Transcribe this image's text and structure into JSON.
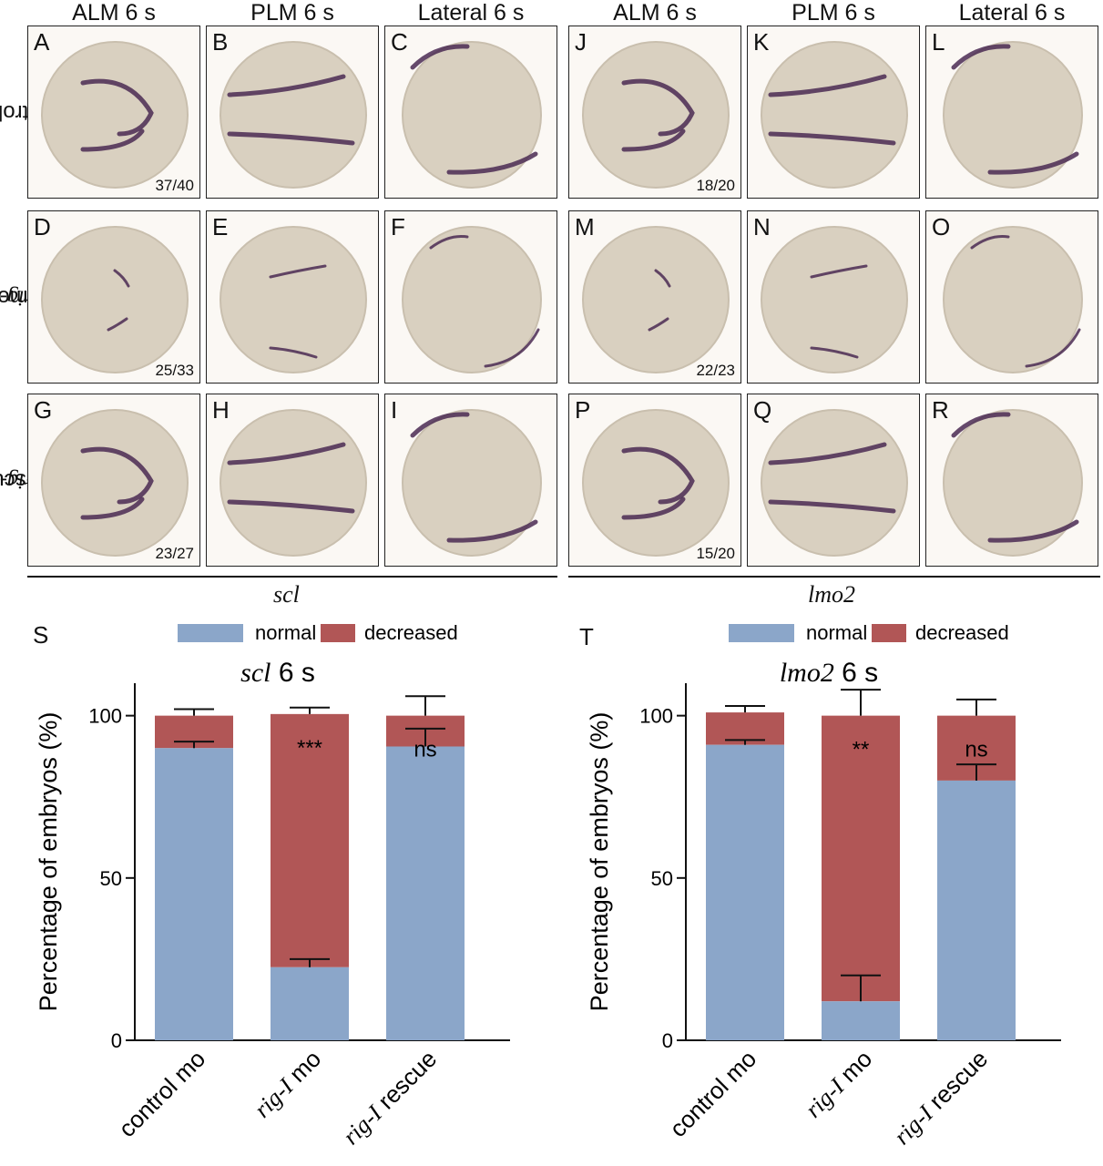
{
  "column_headers": [
    "ALM 6 s",
    "PLM 6 s",
    "Lateral 6 s",
    "ALM 6 s",
    "PLM 6 s",
    "Lateral 6 s"
  ],
  "row_labels": [
    {
      "italic": "",
      "plain": "control mo"
    },
    {
      "italic": "rig-I",
      "plain": " mo"
    },
    {
      "italic": "rig-I",
      "plain": " rescue"
    }
  ],
  "panels": [
    {
      "letter": "A",
      "count": "37/40",
      "view": "alm",
      "strength": "strong"
    },
    {
      "letter": "B",
      "count": "",
      "view": "plm",
      "strength": "strong"
    },
    {
      "letter": "C",
      "count": "",
      "view": "lateral",
      "strength": "strong"
    },
    {
      "letter": "J",
      "count": "18/20",
      "view": "alm",
      "strength": "strong"
    },
    {
      "letter": "K",
      "count": "",
      "view": "plm",
      "strength": "strong"
    },
    {
      "letter": "L",
      "count": "",
      "view": "lateral",
      "strength": "strong"
    },
    {
      "letter": "D",
      "count": "25/33",
      "view": "alm",
      "strength": "weak"
    },
    {
      "letter": "E",
      "count": "",
      "view": "plm",
      "strength": "weak"
    },
    {
      "letter": "F",
      "count": "",
      "view": "lateral",
      "strength": "weak"
    },
    {
      "letter": "M",
      "count": "22/23",
      "view": "alm",
      "strength": "weak"
    },
    {
      "letter": "N",
      "count": "",
      "view": "plm",
      "strength": "weak"
    },
    {
      "letter": "O",
      "count": "",
      "view": "lateral",
      "strength": "weak"
    },
    {
      "letter": "G",
      "count": "23/27",
      "view": "alm",
      "strength": "strong"
    },
    {
      "letter": "H",
      "count": "",
      "view": "plm",
      "strength": "strong"
    },
    {
      "letter": "I",
      "count": "",
      "view": "lateral",
      "strength": "strong"
    },
    {
      "letter": "P",
      "count": "15/20",
      "view": "alm",
      "strength": "strong"
    },
    {
      "letter": "Q",
      "count": "",
      "view": "plm",
      "strength": "strong"
    },
    {
      "letter": "R",
      "count": "",
      "view": "lateral",
      "strength": "strong"
    }
  ],
  "genes": {
    "left": "scl",
    "right": "lmo2"
  },
  "colors": {
    "normal": "#8ba6c9",
    "decreased": "#b15656",
    "embryo": "#d9d0c0",
    "stain": "#4a2a52"
  },
  "chart_data": [
    {
      "panel": "S",
      "type": "bar",
      "stacked": true,
      "title_italic": "scl",
      "title_plain": " 6 s",
      "ylabel": "Percentage of embryos (%)",
      "ylim": [
        0,
        110
      ],
      "yticks": [
        0,
        50,
        100
      ],
      "legend": [
        "normal",
        "decreased"
      ],
      "categories": [
        {
          "italic": "",
          "plain": "control mo"
        },
        {
          "italic": "rig-I",
          "plain": " mo"
        },
        {
          "italic": "rig-I",
          "plain": " rescue"
        }
      ],
      "series": [
        {
          "name": "normal",
          "values": [
            90,
            22.5,
            90.5
          ],
          "error": [
            2,
            2.5,
            5.5
          ]
        },
        {
          "name": "decreased",
          "values": [
            10,
            78,
            9.5
          ],
          "error": [
            2,
            2,
            6
          ]
        }
      ],
      "annotations": [
        "",
        "***",
        "ns"
      ]
    },
    {
      "panel": "T",
      "type": "bar",
      "stacked": true,
      "title_italic": "lmo2",
      "title_plain": " 6 s",
      "ylabel": "Percentage of embryos (%)",
      "ylim": [
        0,
        110
      ],
      "yticks": [
        0,
        50,
        100
      ],
      "legend": [
        "normal",
        "decreased"
      ],
      "categories": [
        {
          "italic": "",
          "plain": "control mo"
        },
        {
          "italic": "rig-I",
          "plain": " mo"
        },
        {
          "italic": "rig-I",
          "plain": " rescue"
        }
      ],
      "series": [
        {
          "name": "normal",
          "values": [
            91,
            12,
            80
          ],
          "error": [
            1.5,
            8,
            5
          ]
        },
        {
          "name": "decreased",
          "values": [
            10,
            88,
            20
          ],
          "error": [
            2,
            8,
            5
          ]
        }
      ],
      "annotations": [
        "",
        "**",
        "ns"
      ]
    }
  ]
}
